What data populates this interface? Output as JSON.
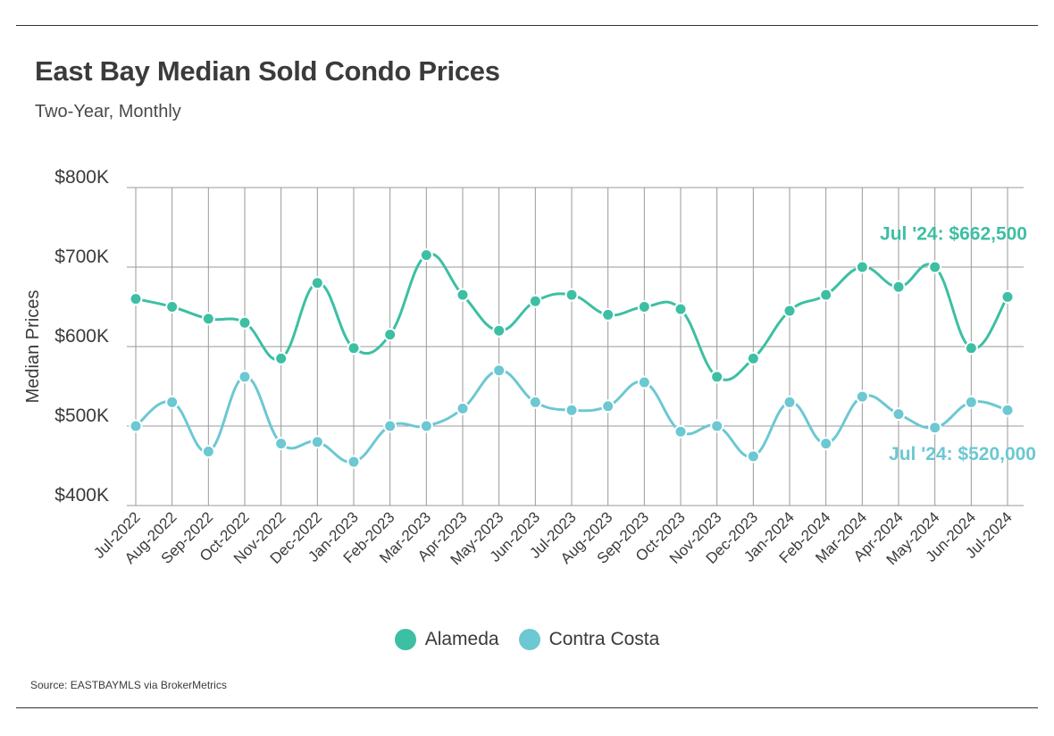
{
  "header": {
    "title": "East Bay Median Sold Condo Prices",
    "subtitle": "Two-Year, Monthly"
  },
  "footer": {
    "source": "Source:  EASTBAYMLS via BrokerMetrics"
  },
  "chart_data": {
    "type": "line",
    "title": "East Bay Median Sold Condo Prices",
    "subtitle": "Two-Year, Monthly",
    "xlabel": "",
    "ylabel": "Median Prices",
    "ylim": [
      400000,
      800000
    ],
    "yticks": [
      {
        "value": 400000,
        "label": "$400K"
      },
      {
        "value": 500000,
        "label": "$500K"
      },
      {
        "value": 600000,
        "label": "$600K"
      },
      {
        "value": 700000,
        "label": "$700K"
      },
      {
        "value": 800000,
        "label": "$800K"
      }
    ],
    "grid": true,
    "legend_position": "bottom-center",
    "categories": [
      "Jul-2022",
      "Aug-2022",
      "Sep-2022",
      "Oct-2022",
      "Nov-2022",
      "Dec-2022",
      "Jan-2023",
      "Feb-2023",
      "Mar-2023",
      "Apr-2023",
      "May-2023",
      "Jun-2023",
      "Jul-2023",
      "Aug-2023",
      "Sep-2023",
      "Oct-2023",
      "Nov-2023",
      "Dec-2023",
      "Jan-2024",
      "Feb-2024",
      "Mar-2024",
      "Apr-2024",
      "May-2024",
      "Jun-2024",
      "Jul-2024"
    ],
    "series": [
      {
        "name": "Alameda",
        "color": "#3dbfa3",
        "values": [
          660000,
          650000,
          635000,
          630000,
          585000,
          680000,
          598000,
          615000,
          715000,
          665000,
          620000,
          657000,
          665000,
          640000,
          650000,
          647000,
          562000,
          585000,
          645000,
          665000,
          700000,
          675000,
          700000,
          598000,
          662500
        ],
        "annotation": "Jul '24: $662,500"
      },
      {
        "name": "Contra Costa",
        "color": "#6cc8d2",
        "values": [
          500000,
          530000,
          468000,
          562000,
          478000,
          480000,
          455000,
          500000,
          500000,
          522000,
          570000,
          530000,
          520000,
          525000,
          555000,
          493000,
          500000,
          462000,
          530000,
          478000,
          537000,
          515000,
          498000,
          530000,
          520000
        ],
        "annotation": "Jul '24: $520,000"
      }
    ]
  }
}
